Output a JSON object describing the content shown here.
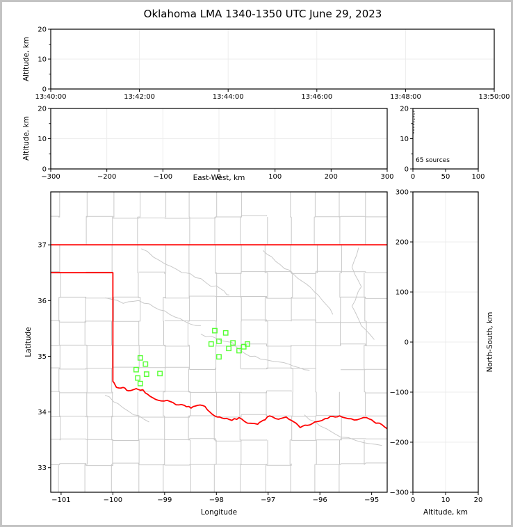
{
  "title": "Oklahoma LMA 1340-1350 UTC June 29, 2023",
  "colors": {
    "source_marker": "#55ff33",
    "state_border": "#ff0000",
    "county_line": "#c9c9c9",
    "river_line": "#c9c9c9",
    "grid_line": "#ececec",
    "axis": "#000000"
  },
  "chart_data": [
    {
      "id": "time_altitude",
      "type": "scatter",
      "xlabel": "",
      "ylabel": "Altitude, km",
      "x_tick_labels": [
        "13:40:00",
        "13:42:00",
        "13:44:00",
        "13:46:00",
        "13:48:00",
        "13:50:00"
      ],
      "ylim": [
        0,
        20
      ],
      "y_ticks": [
        {
          "v": 0,
          "label": "0"
        },
        {
          "v": 10,
          "label": "10"
        },
        {
          "v": 20,
          "label": "20"
        }
      ],
      "grid": true,
      "points": []
    },
    {
      "id": "eastwest_altitude",
      "type": "scatter",
      "xlabel": "East-West, km",
      "ylabel": "Altitude, km",
      "xlim": [
        -300,
        300
      ],
      "x_ticks": [
        {
          "v": -300,
          "label": "−300"
        },
        {
          "v": -200,
          "label": "−200"
        },
        {
          "v": -100,
          "label": "−100"
        },
        {
          "v": 0,
          "label": "0"
        },
        {
          "v": 100,
          "label": "100"
        },
        {
          "v": 200,
          "label": "200"
        },
        {
          "v": 300,
          "label": "300"
        }
      ],
      "ylim": [
        0,
        20
      ],
      "y_ticks": [
        {
          "v": 0,
          "label": "0"
        },
        {
          "v": 10,
          "label": "10"
        },
        {
          "v": 20,
          "label": "20"
        }
      ],
      "grid": true,
      "points": []
    },
    {
      "id": "source_altitude_histogram",
      "type": "line",
      "annotation": "65 sources",
      "xlim": [
        0,
        100
      ],
      "x_ticks": [
        {
          "v": 0,
          "label": "0"
        },
        {
          "v": 50,
          "label": "50"
        },
        {
          "v": 100,
          "label": "100"
        }
      ],
      "ylim": [
        0,
        20
      ],
      "y_ticks": [
        {
          "v": 0,
          "label": "0"
        },
        {
          "v": 10,
          "label": "10"
        },
        {
          "v": 20,
          "label": "20"
        }
      ],
      "grid": false,
      "line_points": [
        [
          1.5,
          19.2
        ],
        [
          2.6,
          18.4
        ],
        [
          1.2,
          17.6
        ],
        [
          2.9,
          16.8
        ],
        [
          1.5,
          16.0
        ],
        [
          2.2,
          15.2
        ],
        [
          1.2,
          14.4
        ],
        [
          1.8,
          13.4
        ],
        [
          1.2,
          12.4
        ],
        [
          0.8,
          11.2
        ]
      ]
    },
    {
      "id": "map",
      "type": "scatter",
      "xlabel": "Longitude",
      "ylabel": "Latitude",
      "xlim": [
        -101.2,
        -94.7
      ],
      "x_ticks": [
        {
          "v": -101,
          "label": "−101"
        },
        {
          "v": -100,
          "label": "−100"
        },
        {
          "v": -99,
          "label": "−99"
        },
        {
          "v": -98,
          "label": "−98"
        },
        {
          "v": -97,
          "label": "−97"
        },
        {
          "v": -96,
          "label": "−96"
        },
        {
          "v": -95,
          "label": "−95"
        }
      ],
      "ylim": [
        32.56,
        37.95
      ],
      "y_ticks": [
        {
          "v": 33,
          "label": "33"
        },
        {
          "v": 34,
          "label": "34"
        },
        {
          "v": 35,
          "label": "35"
        },
        {
          "v": 36,
          "label": "36"
        },
        {
          "v": 37,
          "label": "37"
        }
      ],
      "grid": false,
      "points": [
        [
          -99.47,
          34.97
        ],
        [
          -99.37,
          34.86
        ],
        [
          -99.55,
          34.76
        ],
        [
          -99.35,
          34.68
        ],
        [
          -99.09,
          34.69
        ],
        [
          -99.52,
          34.61
        ],
        [
          -99.47,
          34.51
        ],
        [
          -98.03,
          35.46
        ],
        [
          -97.82,
          35.42
        ],
        [
          -98.1,
          35.22
        ],
        [
          -97.95,
          35.27
        ],
        [
          -97.76,
          35.14
        ],
        [
          -97.68,
          35.24
        ],
        [
          -97.56,
          35.1
        ],
        [
          -97.47,
          35.17
        ],
        [
          -97.4,
          35.22
        ],
        [
          -97.95,
          34.99
        ]
      ],
      "state_border": {
        "north_lat": 37.0,
        "panhandle_lat": 36.5,
        "panhandle_lon": -100.0,
        "red_river": [
          [
            -100.0,
            34.55
          ],
          [
            -99.93,
            34.44
          ],
          [
            -99.8,
            34.44
          ],
          [
            -99.7,
            34.38
          ],
          [
            -99.55,
            34.42
          ],
          [
            -99.42,
            34.4
          ],
          [
            -99.28,
            34.28
          ],
          [
            -99.12,
            34.21
          ],
          [
            -98.95,
            34.21
          ],
          [
            -98.78,
            34.13
          ],
          [
            -98.62,
            34.12
          ],
          [
            -98.49,
            34.07
          ],
          [
            -98.36,
            34.12
          ],
          [
            -98.22,
            34.1
          ],
          [
            -98.08,
            33.96
          ],
          [
            -97.98,
            33.91
          ],
          [
            -97.85,
            33.88
          ],
          [
            -97.7,
            33.85
          ],
          [
            -97.56,
            33.9
          ],
          [
            -97.4,
            33.8
          ],
          [
            -97.2,
            33.78
          ],
          [
            -97.1,
            33.85
          ],
          [
            -96.97,
            33.93
          ],
          [
            -96.8,
            33.87
          ],
          [
            -96.65,
            33.91
          ],
          [
            -96.5,
            33.82
          ],
          [
            -96.38,
            33.72
          ],
          [
            -96.24,
            33.76
          ],
          [
            -96.1,
            33.82
          ],
          [
            -95.9,
            33.88
          ],
          [
            -95.75,
            33.92
          ],
          [
            -95.62,
            33.93
          ],
          [
            -95.45,
            33.88
          ],
          [
            -95.28,
            33.86
          ],
          [
            -95.1,
            33.9
          ],
          [
            -94.95,
            33.82
          ],
          [
            -94.85,
            33.8
          ],
          [
            -94.7,
            33.7
          ]
        ]
      }
    },
    {
      "id": "northsouth_altitude",
      "type": "scatter",
      "xlabel": "Altitude, km",
      "ylabel": "North-South, km",
      "xlim": [
        0,
        20
      ],
      "x_ticks": [
        {
          "v": 0,
          "label": "0"
        },
        {
          "v": 10,
          "label": "10"
        },
        {
          "v": 20,
          "label": "20"
        }
      ],
      "ylim": [
        -300,
        300
      ],
      "y_ticks": [
        {
          "v": -300,
          "label": "−300"
        },
        {
          "v": -200,
          "label": "−200"
        },
        {
          "v": -100,
          "label": "−100"
        },
        {
          "v": 0,
          "label": "0"
        },
        {
          "v": 100,
          "label": "100"
        },
        {
          "v": 200,
          "label": "200"
        },
        {
          "v": 300,
          "label": "300"
        }
      ],
      "grid": true,
      "points": []
    }
  ]
}
